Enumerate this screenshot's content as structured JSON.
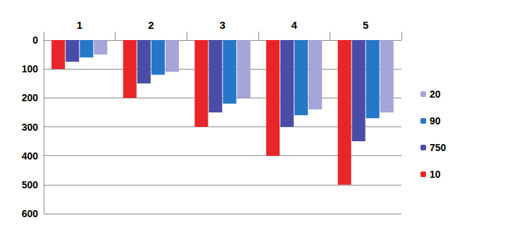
{
  "chart_data": {
    "type": "bar",
    "categories": [
      "1",
      "2",
      "3",
      "4",
      "5"
    ],
    "series": [
      {
        "name": "10",
        "color": "#e8262a",
        "values": [
          100,
          200,
          300,
          400,
          500
        ]
      },
      {
        "name": "750",
        "color": "#4b4ca6",
        "values": [
          75,
          150,
          250,
          300,
          350
        ]
      },
      {
        "name": "90",
        "color": "#2677c8",
        "values": [
          60,
          120,
          220,
          260,
          270
        ]
      },
      {
        "name": "20",
        "color": "#a5a5d9",
        "values": [
          50,
          110,
          200,
          240,
          250
        ]
      }
    ],
    "ylim": [
      0,
      600
    ],
    "yticks": [
      0,
      100,
      200,
      300,
      400,
      500,
      600
    ],
    "grid": true,
    "legend": "right"
  }
}
